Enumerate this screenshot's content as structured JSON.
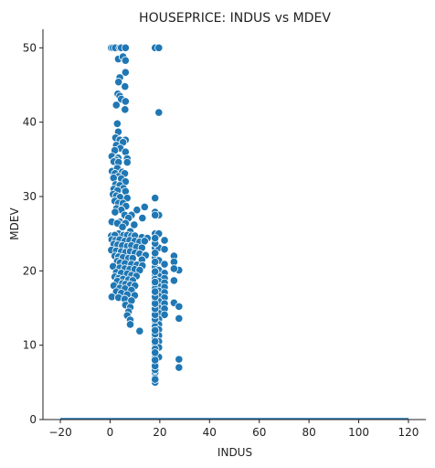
{
  "chart_data": {
    "type": "scatter",
    "title": "HOUSEPRICE: INDUS vs MDEV",
    "xlabel": "INDUS",
    "ylabel": "MDEV",
    "xlim": [
      -27,
      127
    ],
    "ylim": [
      0,
      52.5
    ],
    "xticks": [
      -20,
      0,
      20,
      40,
      60,
      80,
      100,
      120
    ],
    "yticks": [
      0,
      10,
      20,
      30,
      40,
      50
    ],
    "xtick_labels": [
      "−20",
      "0",
      "20",
      "40",
      "60",
      "80",
      "100",
      "120"
    ],
    "ytick_labels": [
      "0",
      "10",
      "20",
      "30",
      "40",
      "50"
    ],
    "grid": false,
    "colors": {
      "marker": "#1f77b4",
      "edge": "#ffffff",
      "axis": "#222222"
    },
    "baseline": {
      "x": [
        -20,
        120
      ],
      "y": [
        0,
        0
      ]
    },
    "points": [
      [
        0.5,
        50
      ],
      [
        1.2,
        50
      ],
      [
        2.1,
        50
      ],
      [
        3.9,
        50
      ],
      [
        4.5,
        50
      ],
      [
        6.2,
        50
      ],
      [
        18.1,
        50
      ],
      [
        19.6,
        50
      ],
      [
        3.3,
        48.5
      ],
      [
        5.2,
        48.8
      ],
      [
        6.2,
        48.3
      ],
      [
        3.9,
        46.0
      ],
      [
        6.2,
        46.7
      ],
      [
        3.4,
        45.4
      ],
      [
        6.0,
        44.8
      ],
      [
        3.1,
        43.8
      ],
      [
        3.9,
        43.5
      ],
      [
        4.5,
        43.1
      ],
      [
        2.5,
        42.3
      ],
      [
        6.2,
        42.8
      ],
      [
        6.0,
        41.7
      ],
      [
        19.6,
        41.3
      ],
      [
        2.9,
        39.8
      ],
      [
        3.3,
        38.7
      ],
      [
        2.2,
        37.9
      ],
      [
        3.9,
        37.6
      ],
      [
        6.2,
        37.6
      ],
      [
        5.2,
        37.3
      ],
      [
        2.5,
        36.9
      ],
      [
        4.1,
        36.5
      ],
      [
        1.9,
        36.2
      ],
      [
        6.2,
        36.0
      ],
      [
        0.7,
        35.4
      ],
      [
        3.2,
        35.2
      ],
      [
        2.4,
        34.9
      ],
      [
        6.9,
        35.1
      ],
      [
        1.5,
        34.7
      ],
      [
        3.4,
        34.6
      ],
      [
        6.9,
        34.6
      ],
      [
        0.8,
        33.4
      ],
      [
        2.9,
        33.8
      ],
      [
        4.9,
        33.3
      ],
      [
        5.9,
        33.1
      ],
      [
        2.0,
        33.1
      ],
      [
        3.3,
        32.7
      ],
      [
        1.4,
        32.5
      ],
      [
        4.5,
        32.4
      ],
      [
        6.2,
        32.0
      ],
      [
        2.2,
        31.6
      ],
      [
        3.9,
        31.5
      ],
      [
        5.4,
        31.1
      ],
      [
        1.5,
        31.0
      ],
      [
        3.0,
        30.8
      ],
      [
        6.2,
        30.7
      ],
      [
        1.2,
        30.3
      ],
      [
        2.5,
        30.1
      ],
      [
        4.0,
        29.9
      ],
      [
        6.9,
        29.8
      ],
      [
        18.1,
        29.8
      ],
      [
        1.9,
        29.4
      ],
      [
        3.4,
        29.1
      ],
      [
        5.2,
        29.1
      ],
      [
        6.4,
        28.7
      ],
      [
        2.6,
        28.4
      ],
      [
        4.5,
        28.2
      ],
      [
        13.9,
        28.6
      ],
      [
        10.8,
        28.2
      ],
      [
        18.1,
        27.9
      ],
      [
        19.6,
        27.5
      ],
      [
        2.0,
        27.9
      ],
      [
        5.9,
        27.5
      ],
      [
        8.6,
        27.5
      ],
      [
        7.4,
        27.1
      ],
      [
        13.0,
        27.1
      ],
      [
        4.0,
        26.6
      ],
      [
        0.7,
        26.6
      ],
      [
        2.9,
        26.4
      ],
      [
        6.2,
        26.4
      ],
      [
        9.7,
        26.2
      ],
      [
        5.0,
        25.9
      ],
      [
        8.1,
        25.3
      ],
      [
        3.4,
        25.0
      ],
      [
        0.5,
        24.7
      ],
      [
        1.9,
        24.8
      ],
      [
        5.4,
        24.8
      ],
      [
        6.9,
        24.8
      ],
      [
        8.6,
        24.7
      ],
      [
        10.0,
        24.7
      ],
      [
        12.8,
        24.5
      ],
      [
        18.1,
        25.0
      ],
      [
        19.6,
        25.0
      ],
      [
        15.0,
        24.4
      ],
      [
        0.7,
        24.2
      ],
      [
        2.2,
        24.1
      ],
      [
        3.9,
        24.2
      ],
      [
        5.9,
        24.0
      ],
      [
        7.9,
        24.1
      ],
      [
        9.9,
        24.0
      ],
      [
        11.9,
        23.9
      ],
      [
        13.9,
        24.0
      ],
      [
        21.9,
        24.1
      ],
      [
        1.5,
        23.6
      ],
      [
        3.1,
        23.5
      ],
      [
        4.9,
        23.4
      ],
      [
        6.9,
        23.3
      ],
      [
        8.6,
        23.4
      ],
      [
        10.6,
        23.2
      ],
      [
        12.8,
        23.1
      ],
      [
        18.1,
        23.1
      ],
      [
        19.6,
        23.1
      ],
      [
        21.9,
        22.9
      ],
      [
        0.5,
        22.8
      ],
      [
        2.5,
        22.7
      ],
      [
        4.5,
        22.6
      ],
      [
        6.2,
        22.5
      ],
      [
        8.1,
        22.6
      ],
      [
        10.0,
        22.4
      ],
      [
        11.9,
        22.3
      ],
      [
        14.3,
        22.1
      ],
      [
        25.7,
        22.0
      ],
      [
        1.9,
        22.0
      ],
      [
        3.4,
        21.9
      ],
      [
        5.2,
        21.8
      ],
      [
        7.4,
        21.7
      ],
      [
        9.1,
        21.7
      ],
      [
        12.8,
        21.5
      ],
      [
        18.1,
        21.8
      ],
      [
        19.6,
        21.4
      ],
      [
        25.7,
        21.2
      ],
      [
        2.9,
        21.3
      ],
      [
        4.0,
        21.1
      ],
      [
        6.0,
        21.0
      ],
      [
        8.6,
        20.9
      ],
      [
        10.8,
        20.8
      ],
      [
        13.0,
        20.7
      ],
      [
        21.9,
        20.9
      ],
      [
        27.7,
        20.1
      ],
      [
        1.2,
        20.6
      ],
      [
        3.9,
        20.4
      ],
      [
        5.9,
        20.3
      ],
      [
        7.9,
        20.2
      ],
      [
        9.9,
        20.2
      ],
      [
        11.9,
        20.1
      ],
      [
        18.1,
        20.5
      ],
      [
        19.6,
        20.1
      ],
      [
        21.9,
        19.7
      ],
      [
        25.7,
        20.3
      ],
      [
        2.5,
        19.8
      ],
      [
        4.5,
        19.7
      ],
      [
        6.9,
        19.6
      ],
      [
        8.6,
        19.4
      ],
      [
        10.6,
        19.3
      ],
      [
        18.1,
        19.5
      ],
      [
        19.6,
        19.3
      ],
      [
        21.9,
        19.0
      ],
      [
        1.9,
        19.2
      ],
      [
        3.4,
        19.0
      ],
      [
        5.2,
        18.9
      ],
      [
        7.4,
        18.8
      ],
      [
        9.1,
        18.7
      ],
      [
        18.1,
        18.9
      ],
      [
        19.6,
        18.6
      ],
      [
        21.9,
        18.4
      ],
      [
        2.9,
        18.6
      ],
      [
        4.9,
        18.3
      ],
      [
        6.2,
        18.2
      ],
      [
        8.1,
        18.1
      ],
      [
        10.0,
        18.0
      ],
      [
        18.1,
        18.2
      ],
      [
        19.6,
        17.9
      ],
      [
        21.9,
        17.8
      ],
      [
        25.7,
        18.7
      ],
      [
        1.5,
        18.0
      ],
      [
        3.9,
        17.7
      ],
      [
        6.0,
        17.6
      ],
      [
        8.6,
        17.4
      ],
      [
        18.1,
        17.6
      ],
      [
        19.6,
        17.3
      ],
      [
        21.9,
        17.1
      ],
      [
        2.5,
        17.2
      ],
      [
        4.5,
        17.0
      ],
      [
        6.9,
        16.8
      ],
      [
        9.9,
        16.7
      ],
      [
        18.1,
        16.9
      ],
      [
        19.6,
        16.6
      ],
      [
        21.9,
        16.4
      ],
      [
        0.7,
        16.5
      ],
      [
        3.4,
        16.4
      ],
      [
        5.9,
        16.2
      ],
      [
        8.6,
        16.0
      ],
      [
        18.1,
        16.2
      ],
      [
        19.6,
        15.9
      ],
      [
        21.9,
        15.6
      ],
      [
        25.7,
        15.7
      ],
      [
        27.7,
        15.2
      ],
      [
        6.2,
        15.4
      ],
      [
        8.1,
        15.1
      ],
      [
        18.1,
        15.4
      ],
      [
        19.6,
        15.0
      ],
      [
        21.9,
        14.9
      ],
      [
        7.4,
        14.5
      ],
      [
        18.1,
        14.6
      ],
      [
        19.6,
        14.3
      ],
      [
        21.9,
        14.1
      ],
      [
        6.9,
        14.0
      ],
      [
        18.1,
        13.9
      ],
      [
        19.6,
        13.5
      ],
      [
        27.7,
        13.6
      ],
      [
        8.1,
        13.4
      ],
      [
        18.1,
        13.2
      ],
      [
        19.6,
        12.8
      ],
      [
        8.1,
        12.8
      ],
      [
        18.1,
        12.5
      ],
      [
        19.6,
        12.1
      ],
      [
        11.9,
        11.9
      ],
      [
        18.1,
        11.8
      ],
      [
        19.6,
        11.3
      ],
      [
        18.1,
        11.0
      ],
      [
        19.6,
        10.5
      ],
      [
        18.1,
        10.2
      ],
      [
        19.6,
        9.7
      ],
      [
        18.1,
        9.5
      ],
      [
        18.1,
        8.8
      ],
      [
        27.7,
        8.1
      ],
      [
        18.1,
        8.3
      ],
      [
        18.1,
        7.5
      ],
      [
        27.7,
        7.0
      ],
      [
        18.1,
        7.0
      ],
      [
        18.1,
        6.3
      ],
      [
        18.1,
        5.6
      ],
      [
        18.1,
        5.0
      ],
      [
        18.1,
        5.4
      ],
      [
        18.1,
        6.7
      ],
      [
        18.1,
        7.2
      ],
      [
        19.6,
        8.4
      ],
      [
        18.1,
        8.0
      ],
      [
        18.1,
        9.0
      ],
      [
        18.1,
        10.5
      ],
      [
        18.1,
        11.5
      ],
      [
        18.1,
        12.0
      ],
      [
        18.1,
        13.5
      ],
      [
        18.1,
        14.1
      ],
      [
        18.1,
        14.9
      ],
      [
        18.1,
        15.6
      ],
      [
        18.1,
        16.5
      ],
      [
        18.1,
        17.2
      ],
      [
        18.1,
        18.5
      ],
      [
        18.1,
        19.9
      ],
      [
        18.1,
        21.2
      ],
      [
        18.1,
        22.4
      ],
      [
        18.1,
        23.7
      ],
      [
        18.1,
        24.4
      ],
      [
        18.1,
        27.5
      ]
    ]
  }
}
